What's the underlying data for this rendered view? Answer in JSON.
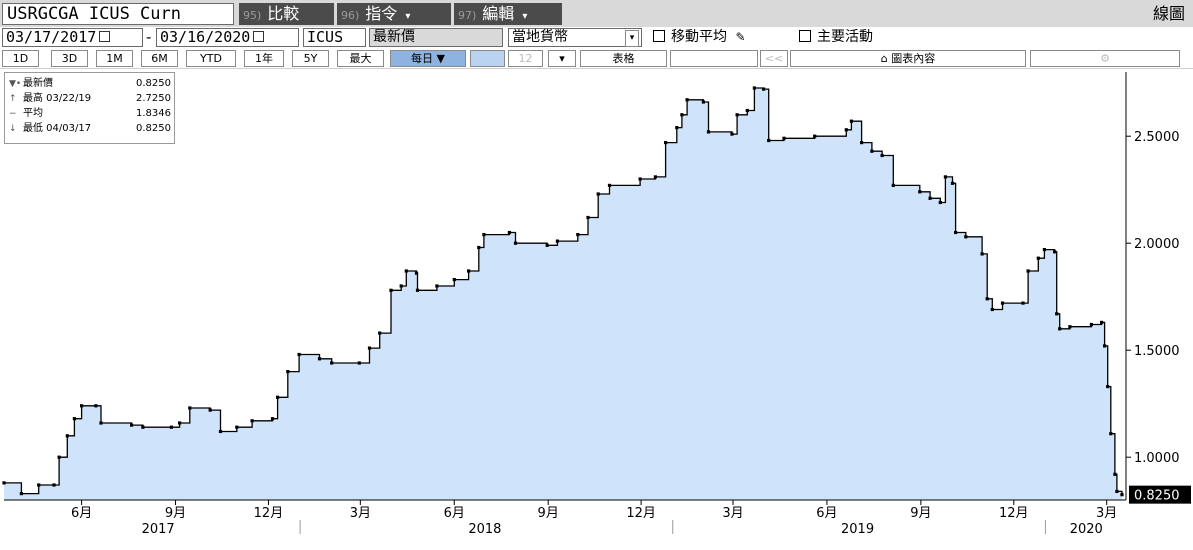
{
  "toolbar": {
    "ticker": "USRGCGA ICUS Curn",
    "menus": [
      {
        "num": "95)",
        "label": "比較",
        "has_caret": false
      },
      {
        "num": "96)",
        "label": "指令",
        "has_caret": true
      },
      {
        "num": "97)",
        "label": "編輯",
        "has_caret": true
      }
    ],
    "right_label": "線圖",
    "start_date": "03/17/2017",
    "end_date": "03/16/2020",
    "source": "ICUS",
    "field": "最新價",
    "currency": "當地貨幣",
    "moving_avg": "移動平均",
    "events": "主要活動",
    "periods": [
      "1D",
      "3D",
      "1M",
      "6M",
      "YTD",
      "1年",
      "5Y",
      "最大"
    ],
    "frequency": "每日 ▼",
    "frequency_num": "12",
    "table": "表格",
    "collapse": "<<",
    "chart_content": "圖表內容",
    "settings_icon": "gear-icon"
  },
  "legend": {
    "rows": [
      {
        "mark": "▼•",
        "label": "最新價",
        "value": "0.8250"
      },
      {
        "mark": "↑",
        "label": "最高 03/22/19",
        "value": "2.7250"
      },
      {
        "mark": "−",
        "label": "平均",
        "value": "1.8346"
      },
      {
        "mark": "↓",
        "label": "最低 04/03/17",
        "value": "0.8250"
      }
    ]
  },
  "colors": {
    "fill": "#cfe4fa",
    "line": "#000000",
    "last_badge_bg": "#000000",
    "last_badge_fg": "#ffffff"
  },
  "chart_data": {
    "type": "area",
    "y_scale": "linear",
    "ylim": [
      0.8,
      2.8
    ],
    "y_ticks": [
      {
        "value": 1.0,
        "label": "1.0000"
      },
      {
        "value": 1.5,
        "label": "1.5000"
      },
      {
        "value": 2.0,
        "label": "2.0000"
      },
      {
        "value": 2.5,
        "label": "2.5000"
      }
    ],
    "last_value_label": "0.8250",
    "x_range": [
      "2017-03-17",
      "2020-03-16"
    ],
    "x_month_ticks": [
      {
        "date": "2017-06-01",
        "label": "6月"
      },
      {
        "date": "2017-09-01",
        "label": "9月"
      },
      {
        "date": "2017-12-01",
        "label": "12月"
      },
      {
        "date": "2018-03-01",
        "label": "3月"
      },
      {
        "date": "2018-06-01",
        "label": "6月"
      },
      {
        "date": "2018-09-01",
        "label": "9月"
      },
      {
        "date": "2018-12-01",
        "label": "12月"
      },
      {
        "date": "2019-03-01",
        "label": "3月"
      },
      {
        "date": "2019-06-01",
        "label": "6月"
      },
      {
        "date": "2019-09-01",
        "label": "9月"
      },
      {
        "date": "2019-12-01",
        "label": "12月"
      },
      {
        "date": "2020-03-01",
        "label": "3月"
      }
    ],
    "x_year_labels": [
      {
        "date": "2017-08-15",
        "label": "2017"
      },
      {
        "date": "2018-07-01",
        "label": "2018"
      },
      {
        "date": "2019-07-01",
        "label": "2019"
      },
      {
        "date": "2020-02-10",
        "label": "2020"
      }
    ],
    "x_year_separators": [
      "2018-01-01",
      "2019-01-01",
      "2020-01-01"
    ],
    "series": [
      {
        "values": [
          [
            "2017-03-17",
            0.88
          ],
          [
            "2017-04-03",
            0.83
          ],
          [
            "2017-04-20",
            0.87
          ],
          [
            "2017-05-05",
            0.87
          ],
          [
            "2017-05-10",
            1.0
          ],
          [
            "2017-05-18",
            1.1
          ],
          [
            "2017-05-25",
            1.18
          ],
          [
            "2017-06-01",
            1.24
          ],
          [
            "2017-06-15",
            1.24
          ],
          [
            "2017-06-20",
            1.16
          ],
          [
            "2017-07-20",
            1.15
          ],
          [
            "2017-07-31",
            1.14
          ],
          [
            "2017-08-28",
            1.14
          ],
          [
            "2017-09-05",
            1.16
          ],
          [
            "2017-09-15",
            1.23
          ],
          [
            "2017-10-05",
            1.22
          ],
          [
            "2017-10-15",
            1.12
          ],
          [
            "2017-10-31",
            1.14
          ],
          [
            "2017-11-15",
            1.17
          ],
          [
            "2017-12-05",
            1.18
          ],
          [
            "2017-12-10",
            1.28
          ],
          [
            "2017-12-20",
            1.4
          ],
          [
            "2017-12-31",
            1.48
          ],
          [
            "2018-01-20",
            1.46
          ],
          [
            "2018-02-01",
            1.44
          ],
          [
            "2018-02-28",
            1.44
          ],
          [
            "2018-03-10",
            1.51
          ],
          [
            "2018-03-20",
            1.58
          ],
          [
            "2018-03-31",
            1.78
          ],
          [
            "2018-04-10",
            1.8
          ],
          [
            "2018-04-15",
            1.87
          ],
          [
            "2018-04-25",
            1.86
          ],
          [
            "2018-04-26",
            1.78
          ],
          [
            "2018-05-15",
            1.8
          ],
          [
            "2018-06-01",
            1.83
          ],
          [
            "2018-06-15",
            1.87
          ],
          [
            "2018-06-25",
            1.98
          ],
          [
            "2018-06-30",
            2.04
          ],
          [
            "2018-07-25",
            2.05
          ],
          [
            "2018-07-31",
            2.0
          ],
          [
            "2018-08-31",
            1.99
          ],
          [
            "2018-09-10",
            2.01
          ],
          [
            "2018-09-30",
            2.04
          ],
          [
            "2018-10-10",
            2.12
          ],
          [
            "2018-10-20",
            2.23
          ],
          [
            "2018-10-31",
            2.27
          ],
          [
            "2018-11-30",
            2.3
          ],
          [
            "2018-12-15",
            2.31
          ],
          [
            "2018-12-25",
            2.47
          ],
          [
            "2019-01-05",
            2.54
          ],
          [
            "2019-01-10",
            2.6
          ],
          [
            "2019-01-15",
            2.67
          ],
          [
            "2019-01-31",
            2.66
          ],
          [
            "2019-02-05",
            2.52
          ],
          [
            "2019-02-28",
            2.51
          ],
          [
            "2019-03-05",
            2.6
          ],
          [
            "2019-03-15",
            2.62
          ],
          [
            "2019-03-22",
            2.725
          ],
          [
            "2019-03-31",
            2.72
          ],
          [
            "2019-04-05",
            2.48
          ],
          [
            "2019-04-20",
            2.49
          ],
          [
            "2019-05-20",
            2.5
          ],
          [
            "2019-06-20",
            2.53
          ],
          [
            "2019-06-25",
            2.57
          ],
          [
            "2019-07-05",
            2.47
          ],
          [
            "2019-07-15",
            2.43
          ],
          [
            "2019-07-25",
            2.41
          ],
          [
            "2019-08-05",
            2.27
          ],
          [
            "2019-08-31",
            2.24
          ],
          [
            "2019-09-10",
            2.21
          ],
          [
            "2019-09-20",
            2.19
          ],
          [
            "2019-09-25",
            2.31
          ],
          [
            "2019-10-02",
            2.28
          ],
          [
            "2019-10-05",
            2.05
          ],
          [
            "2019-10-15",
            2.03
          ],
          [
            "2019-10-31",
            1.95
          ],
          [
            "2019-11-05",
            1.74
          ],
          [
            "2019-11-10",
            1.69
          ],
          [
            "2019-11-20",
            1.72
          ],
          [
            "2019-12-10",
            1.72
          ],
          [
            "2019-12-15",
            1.87
          ],
          [
            "2019-12-25",
            1.93
          ],
          [
            "2019-12-31",
            1.97
          ],
          [
            "2020-01-10",
            1.96
          ],
          [
            "2020-01-12",
            1.67
          ],
          [
            "2020-01-15",
            1.6
          ],
          [
            "2020-01-25",
            1.61
          ],
          [
            "2020-02-15",
            1.62
          ],
          [
            "2020-02-25",
            1.63
          ],
          [
            "2020-02-28",
            1.52
          ],
          [
            "2020-03-02",
            1.33
          ],
          [
            "2020-03-05",
            1.11
          ],
          [
            "2020-03-09",
            0.92
          ],
          [
            "2020-03-11",
            0.84
          ],
          [
            "2020-03-16",
            0.825
          ]
        ]
      }
    ]
  }
}
